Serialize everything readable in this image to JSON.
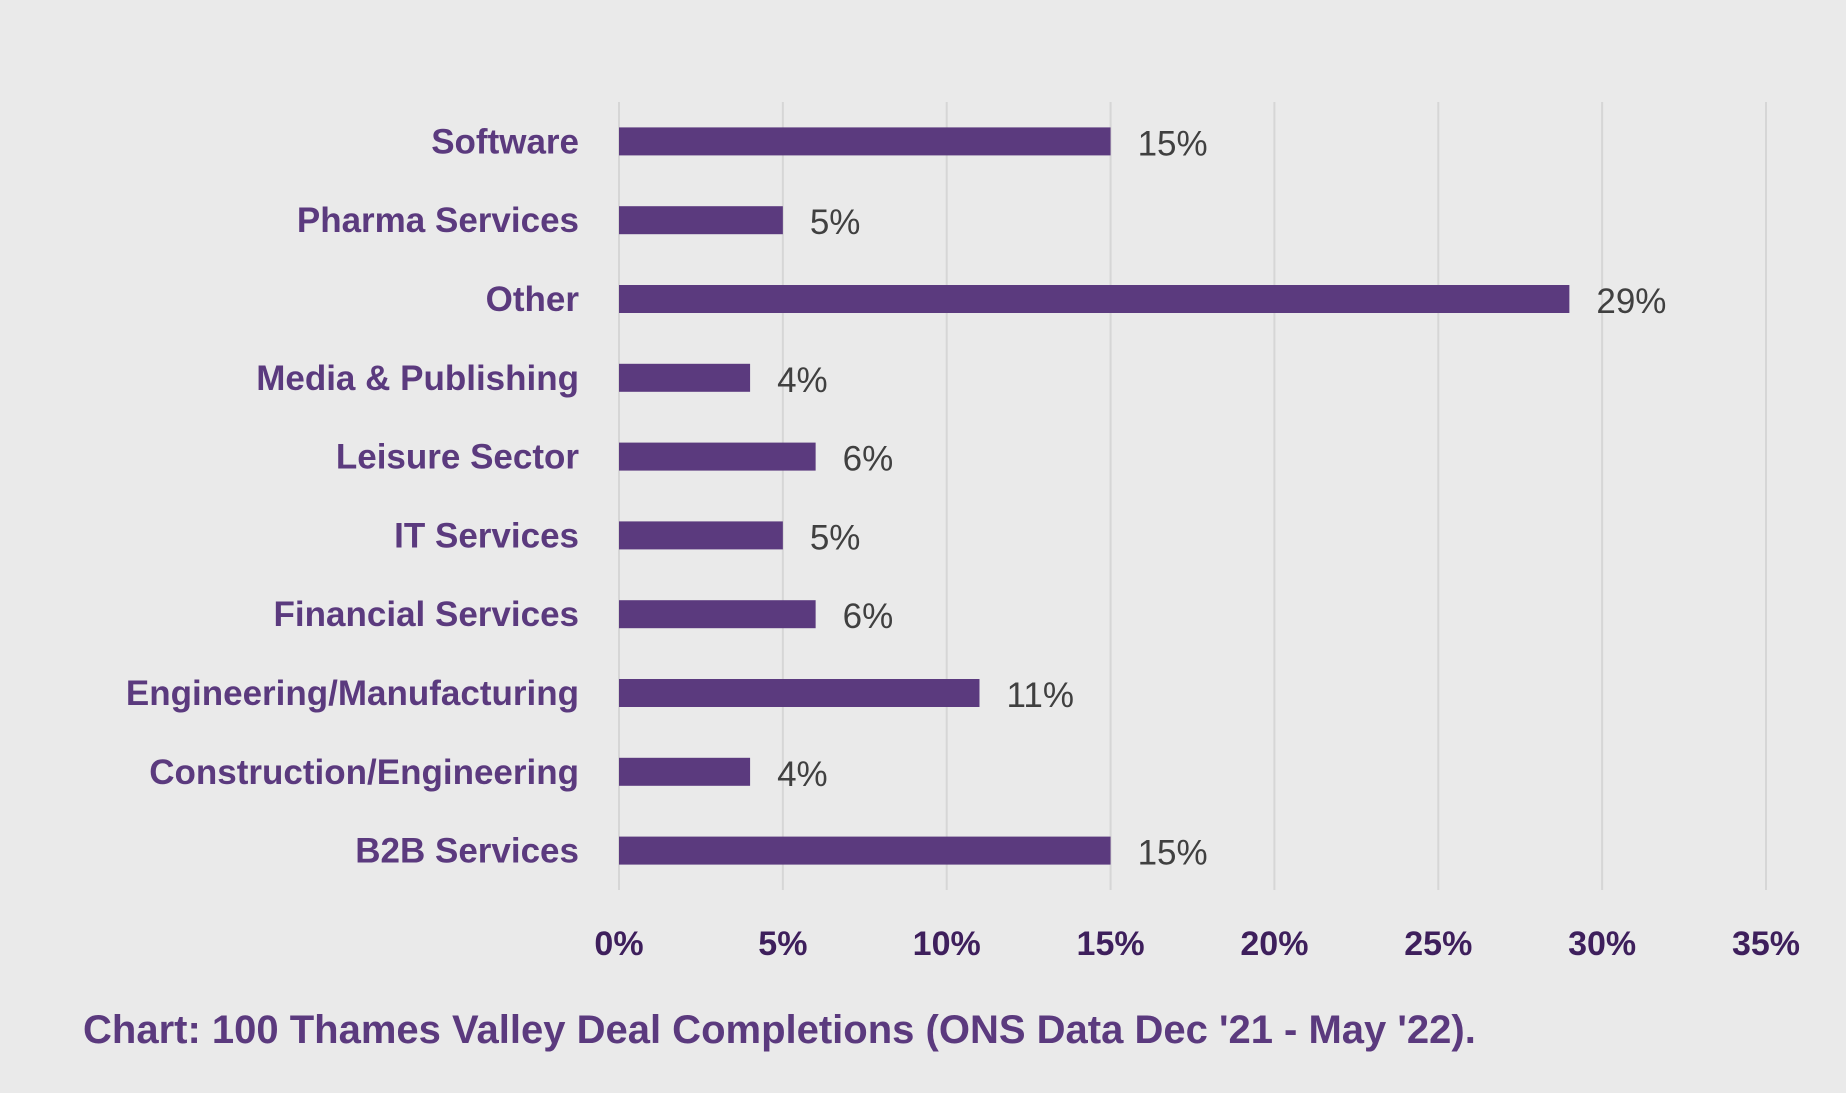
{
  "chart_data": {
    "type": "bar",
    "orientation": "horizontal",
    "categories": [
      "Software",
      "Pharma Services",
      "Other",
      "Media & Publishing",
      "Leisure Sector",
      "IT Services",
      "Financial Services",
      "Engineering/Manufacturing",
      "Construction/Engineering",
      "B2B Services"
    ],
    "values": [
      15,
      5,
      29,
      4,
      6,
      5,
      6,
      11,
      4,
      15
    ],
    "value_labels": [
      "15%",
      "5%",
      "29%",
      "4%",
      "6%",
      "5%",
      "6%",
      "11%",
      "4%",
      "15%"
    ],
    "x_ticks": [
      0,
      5,
      10,
      15,
      20,
      25,
      30,
      35
    ],
    "x_tick_labels": [
      "0%",
      "5%",
      "10%",
      "15%",
      "20%",
      "25%",
      "30%",
      "35%"
    ],
    "xlim": [
      0,
      35
    ],
    "grid": "vertical",
    "legend": "none",
    "title": "",
    "xlabel": "",
    "ylabel": "",
    "caption": "Chart: 100 Thames Valley Deal Completions (ONS Data Dec '21 - May '22).",
    "colors": {
      "bar": "#5B3A7E",
      "background": "#EAEAEA",
      "grid": "#D6D6D6",
      "category_text": "#5B3A7E",
      "value_text": "#404040",
      "tick_text": "#3E1F5C"
    }
  }
}
